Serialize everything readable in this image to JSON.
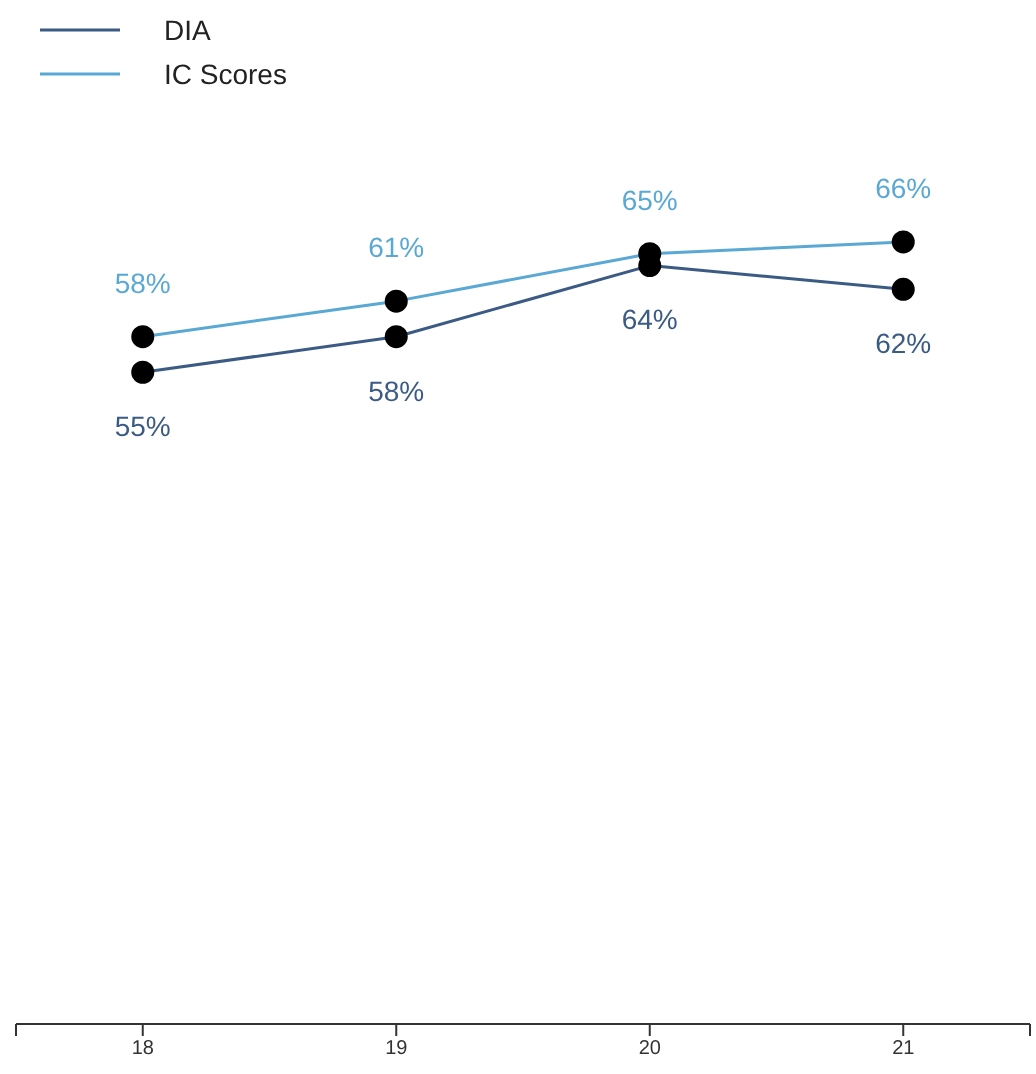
{
  "chart_data": {
    "type": "line",
    "x": [
      18,
      19,
      20,
      21
    ],
    "series": [
      {
        "name": "DIA",
        "color": "#3b5b84",
        "values": [
          55,
          58,
          64,
          62
        ],
        "value_labels": [
          "55%",
          "58%",
          "64%",
          "62%"
        ]
      },
      {
        "name": "IC Scores",
        "color": "#5aa8d4",
        "values": [
          58,
          61,
          65,
          66
        ],
        "value_labels": [
          "58%",
          "61%",
          "65%",
          "66%"
        ]
      }
    ],
    "xlim": [
      17.5,
      21.5
    ],
    "xticks": [
      {
        "value": 17.5,
        "label": null
      },
      18,
      19,
      20,
      21,
      {
        "value": 21.5,
        "label": null
      }
    ],
    "tick_labels": "x",
    "marker": "circle",
    "legend": "top left"
  }
}
